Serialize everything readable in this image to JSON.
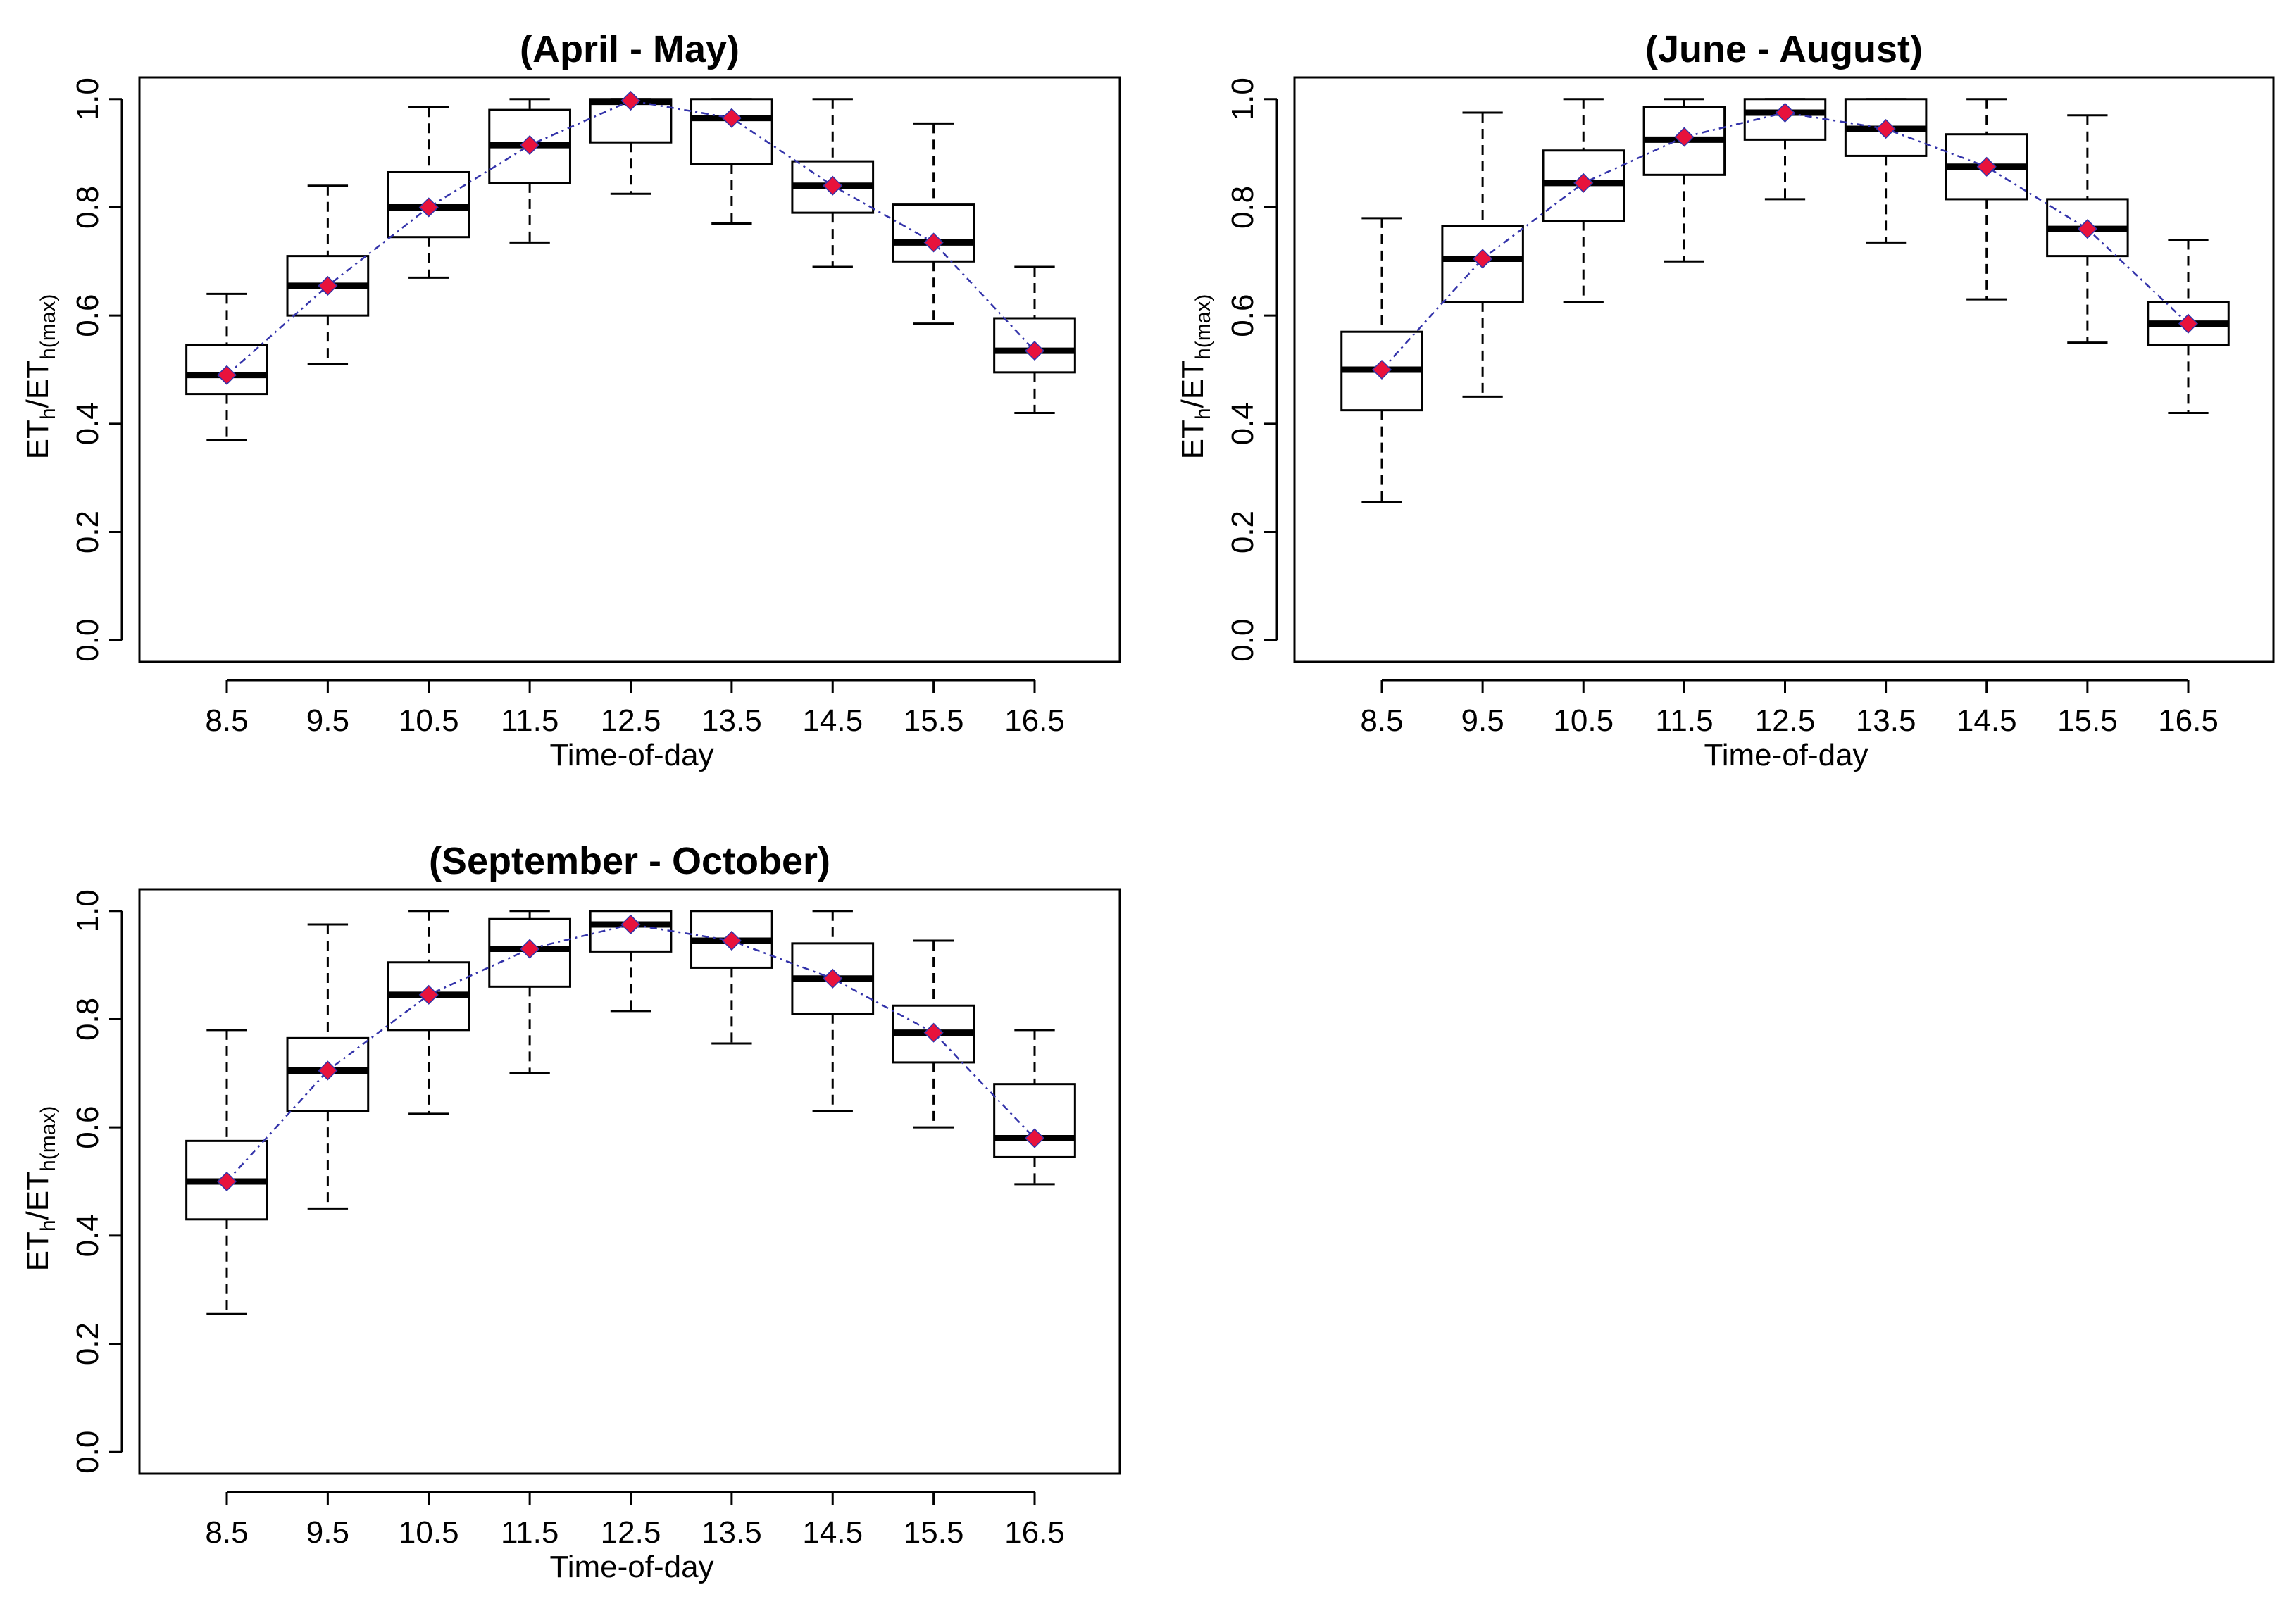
{
  "chart_data": [
    {
      "type": "box",
      "title": "(April - May)",
      "xlabel": "Time-of-day",
      "ylabel": {
        "main": "ET",
        "sub1": "h",
        "slash": "/ET",
        "sub2": "h(max)"
      },
      "categories": [
        "8.5",
        "9.5",
        "10.5",
        "11.5",
        "12.5",
        "13.5",
        "14.5",
        "15.5",
        "16.5"
      ],
      "yticks": [
        "0.0",
        "0.2",
        "0.4",
        "0.6",
        "0.8",
        "1.0"
      ],
      "ylim": [
        -0.04,
        1.04
      ],
      "boxes": [
        {
          "min": 0.37,
          "q1": 0.455,
          "median": 0.49,
          "q3": 0.545,
          "max": 0.64
        },
        {
          "min": 0.51,
          "q1": 0.6,
          "median": 0.655,
          "q3": 0.71,
          "max": 0.84
        },
        {
          "min": 0.67,
          "q1": 0.745,
          "median": 0.8,
          "q3": 0.865,
          "max": 0.985
        },
        {
          "min": 0.735,
          "q1": 0.845,
          "median": 0.915,
          "q3": 0.98,
          "max": 1.0
        },
        {
          "min": 0.825,
          "q1": 0.92,
          "median": 0.995,
          "q3": 1.0,
          "max": 1.0
        },
        {
          "min": 0.77,
          "q1": 0.88,
          "median": 0.965,
          "q3": 1.0,
          "max": 1.0
        },
        {
          "min": 0.69,
          "q1": 0.79,
          "median": 0.84,
          "q3": 0.885,
          "max": 1.0
        },
        {
          "min": 0.585,
          "q1": 0.7,
          "median": 0.735,
          "q3": 0.805,
          "max": 0.955
        },
        {
          "min": 0.42,
          "q1": 0.495,
          "median": 0.535,
          "q3": 0.595,
          "max": 0.69
        }
      ],
      "means": [
        0.49,
        0.655,
        0.8,
        0.915,
        0.997,
        0.965,
        0.84,
        0.735,
        0.535
      ]
    },
    {
      "type": "box",
      "title": "(June - August)",
      "xlabel": "Time-of-day",
      "ylabel": {
        "main": "ET",
        "sub1": "h",
        "slash": "/ET",
        "sub2": "h(max)"
      },
      "categories": [
        "8.5",
        "9.5",
        "10.5",
        "11.5",
        "12.5",
        "13.5",
        "14.5",
        "15.5",
        "16.5"
      ],
      "yticks": [
        "0.0",
        "0.2",
        "0.4",
        "0.6",
        "0.8",
        "1.0"
      ],
      "ylim": [
        -0.04,
        1.04
      ],
      "boxes": [
        {
          "min": 0.255,
          "q1": 0.425,
          "median": 0.5,
          "q3": 0.57,
          "max": 0.78
        },
        {
          "min": 0.45,
          "q1": 0.625,
          "median": 0.705,
          "q3": 0.765,
          "max": 0.975
        },
        {
          "min": 0.625,
          "q1": 0.775,
          "median": 0.845,
          "q3": 0.905,
          "max": 1.0
        },
        {
          "min": 0.7,
          "q1": 0.86,
          "median": 0.925,
          "q3": 0.985,
          "max": 1.0
        },
        {
          "min": 0.815,
          "q1": 0.925,
          "median": 0.975,
          "q3": 1.0,
          "max": 1.0
        },
        {
          "min": 0.735,
          "q1": 0.895,
          "median": 0.945,
          "q3": 1.0,
          "max": 1.0
        },
        {
          "min": 0.63,
          "q1": 0.815,
          "median": 0.875,
          "q3": 0.935,
          "max": 1.0
        },
        {
          "min": 0.55,
          "q1": 0.71,
          "median": 0.76,
          "q3": 0.815,
          "max": 0.97
        },
        {
          "min": 0.42,
          "q1": 0.545,
          "median": 0.585,
          "q3": 0.625,
          "max": 0.74
        }
      ],
      "means": [
        0.5,
        0.705,
        0.845,
        0.93,
        0.975,
        0.945,
        0.875,
        0.76,
        0.585
      ]
    },
    {
      "type": "box",
      "title": "(September - October)",
      "xlabel": "Time-of-day",
      "ylabel": {
        "main": "ET",
        "sub1": "h",
        "slash": "/ET",
        "sub2": "h(max)"
      },
      "categories": [
        "8.5",
        "9.5",
        "10.5",
        "11.5",
        "12.5",
        "13.5",
        "14.5",
        "15.5",
        "16.5"
      ],
      "yticks": [
        "0.0",
        "0.2",
        "0.4",
        "0.6",
        "0.8",
        "1.0"
      ],
      "ylim": [
        -0.04,
        1.04
      ],
      "boxes": [
        {
          "min": 0.255,
          "q1": 0.43,
          "median": 0.5,
          "q3": 0.575,
          "max": 0.78
        },
        {
          "min": 0.45,
          "q1": 0.63,
          "median": 0.705,
          "q3": 0.765,
          "max": 0.975
        },
        {
          "min": 0.625,
          "q1": 0.78,
          "median": 0.845,
          "q3": 0.905,
          "max": 1.0
        },
        {
          "min": 0.7,
          "q1": 0.86,
          "median": 0.93,
          "q3": 0.985,
          "max": 1.0
        },
        {
          "min": 0.815,
          "q1": 0.925,
          "median": 0.975,
          "q3": 1.0,
          "max": 1.0
        },
        {
          "min": 0.755,
          "q1": 0.895,
          "median": 0.945,
          "q3": 1.0,
          "max": 1.0
        },
        {
          "min": 0.63,
          "q1": 0.81,
          "median": 0.875,
          "q3": 0.94,
          "max": 1.0
        },
        {
          "min": 0.6,
          "q1": 0.72,
          "median": 0.775,
          "q3": 0.825,
          "max": 0.945
        },
        {
          "min": 0.495,
          "q1": 0.545,
          "median": 0.58,
          "q3": 0.68,
          "max": 0.78
        }
      ],
      "means": [
        0.5,
        0.705,
        0.845,
        0.93,
        0.975,
        0.945,
        0.875,
        0.775,
        0.58
      ]
    }
  ],
  "colors": {
    "box": "#000000",
    "trend_line": "#3333aa",
    "mean_marker": "#e8123c"
  }
}
